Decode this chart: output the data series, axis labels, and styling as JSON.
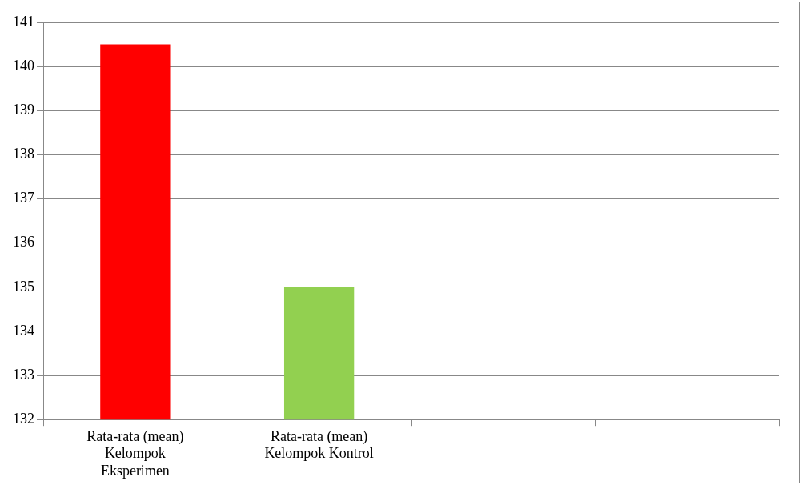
{
  "chart_data": {
    "type": "bar",
    "categories": [
      "Rata-rata (mean) Kelompok Eksperimen",
      "Rata-rata (mean) Kelompok Kontrol",
      null,
      null
    ],
    "values": [
      140.5,
      135.0,
      null,
      null
    ],
    "colors": [
      "#ff0000",
      "#92d050",
      "#92d050",
      "#92d050"
    ],
    "ylim": [
      132,
      141
    ],
    "yticks": [
      132,
      133,
      134,
      135,
      136,
      137,
      138,
      139,
      140,
      141
    ],
    "grid": "y",
    "legend": false
  }
}
